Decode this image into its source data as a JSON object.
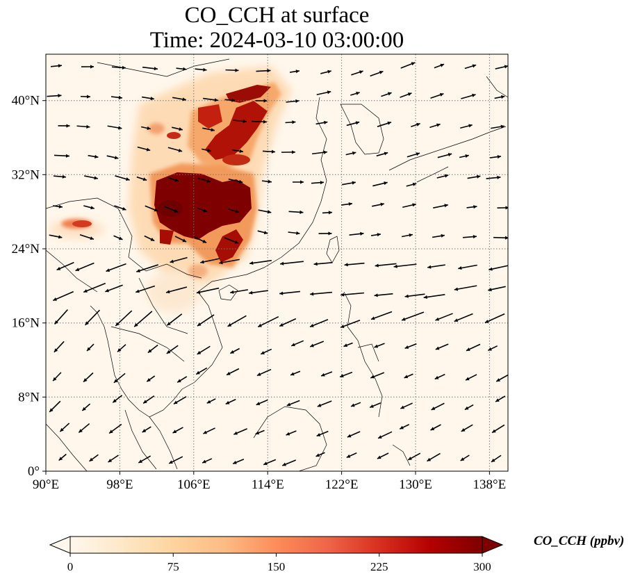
{
  "title": {
    "line1": "CO_CCH at surface",
    "line2": "Time: 2024-03-10 03:00:00"
  },
  "map": {
    "variable": "CO_CCH",
    "level": "surface",
    "time": "2024-03-10 03:00:00",
    "lon_range": [
      90,
      140
    ],
    "lat_range": [
      0,
      45
    ],
    "lon_ticks": [
      90,
      98,
      106,
      114,
      122,
      130,
      138
    ],
    "lon_tick_labels": [
      "90°E",
      "98°E",
      "106°E",
      "114°E",
      "122°E",
      "130°E",
      "138°E"
    ],
    "lat_ticks": [
      0,
      8,
      16,
      24,
      32,
      40
    ],
    "lat_tick_labels": [
      "0°",
      "8°N",
      "16°N",
      "24°N",
      "32°N",
      "40°N"
    ],
    "gridlines": true,
    "gridline_style": "dotted",
    "colormap": "OrRd",
    "overlay": "wind vectors"
  },
  "colorbar": {
    "label": "CO_CCH (ppbv)",
    "min": 0,
    "max": 300,
    "ticks": [
      0,
      75,
      150,
      225,
      300
    ],
    "tick_labels": [
      "0",
      "75",
      "150",
      "225",
      "300"
    ],
    "extend": "both",
    "colors": [
      "#fff7ec",
      "#fee8c8",
      "#fdd49e",
      "#fdbb84",
      "#fc8d59",
      "#ef6548",
      "#d7301f",
      "#b30000",
      "#7f0000"
    ]
  }
}
